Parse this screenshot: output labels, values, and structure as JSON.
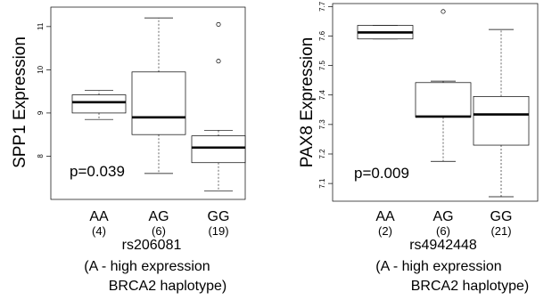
{
  "chart_data": [
    {
      "type": "box",
      "ylabel": "SPP1 Expression",
      "p_value": "p=0.039",
      "y_ticks": [
        8,
        9,
        10,
        11
      ],
      "ylim": [
        7.0,
        11.45
      ],
      "groups": [
        {
          "label": "AA",
          "n": "(4)",
          "min": 8.85,
          "q1": 9.0,
          "median": 9.25,
          "q3": 9.42,
          "max": 9.52,
          "outliers": []
        },
        {
          "label": "AG",
          "n": "(6)",
          "min": 7.6,
          "q1": 8.5,
          "median": 8.9,
          "q3": 9.95,
          "max": 11.2,
          "outliers": []
        },
        {
          "label": "GG",
          "n": "(19)",
          "min": 7.2,
          "q1": 7.85,
          "median": 8.2,
          "q3": 8.47,
          "max": 8.6,
          "outliers": [
            10.2,
            11.05
          ]
        }
      ],
      "xlabel_lines": [
        "rs206081",
        "(A - high expression",
        "BRCA2 haplotype)"
      ]
    },
    {
      "type": "box",
      "ylabel": "PAX8 Expression",
      "p_value": "p=0.009",
      "y_ticks": [
        7.1,
        7.2,
        7.3,
        7.4,
        7.5,
        7.6,
        7.7
      ],
      "ylim": [
        7.04,
        7.71
      ],
      "groups": [
        {
          "label": "AA",
          "n": "(2)",
          "min": 7.59,
          "q1": 7.59,
          "median": 7.612,
          "q3": 7.636,
          "max": 7.636,
          "outliers": []
        },
        {
          "label": "AG",
          "n": "(6)",
          "min": 7.175,
          "q1": 7.325,
          "median": 7.327,
          "q3": 7.442,
          "max": 7.447,
          "outliers": [
            7.683
          ]
        },
        {
          "label": "GG",
          "n": "(21)",
          "min": 7.055,
          "q1": 7.23,
          "median": 7.334,
          "q3": 7.395,
          "max": 7.622,
          "outliers": []
        }
      ],
      "xlabel_lines": [
        "rs4942448",
        "(A - high expression",
        "BRCA2 haplotype)"
      ]
    }
  ]
}
